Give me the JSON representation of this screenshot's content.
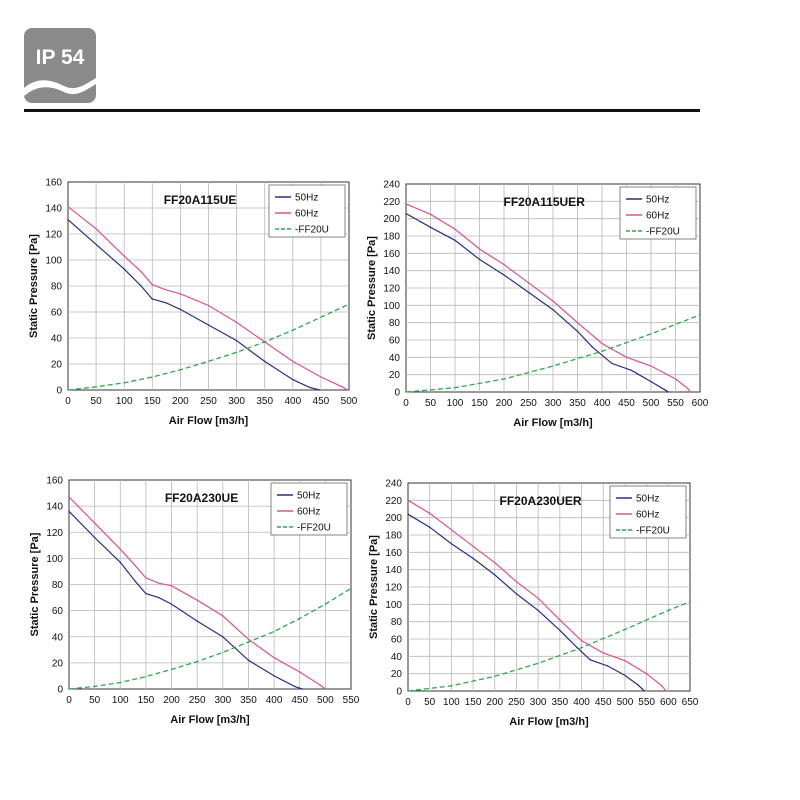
{
  "badge": {
    "label": "IP 54"
  },
  "colors": {
    "hz50": "#2b2c8c",
    "hz60": "#e0508a",
    "ff20u": "#2eaa4a",
    "grid": "#b8b8b8",
    "badge": "#8a8a8a"
  },
  "chart_data": [
    {
      "type": "line",
      "title": "FF20A115UE",
      "xlabel": "Air Flow [m3/h]",
      "ylabel": "Static Pressure [Pa]",
      "xlim": [
        0,
        500
      ],
      "ylim": [
        0,
        160
      ],
      "xticks": [
        0,
        50,
        100,
        150,
        200,
        250,
        300,
        350,
        400,
        450,
        500
      ],
      "yticks": [
        0,
        20,
        40,
        60,
        80,
        100,
        120,
        140,
        160
      ],
      "grid": true,
      "legend": "top-right",
      "series": [
        {
          "name": "50Hz",
          "x": [
            0,
            50,
            100,
            130,
            150,
            175,
            200,
            250,
            300,
            350,
            400,
            430,
            448
          ],
          "y": [
            131,
            112,
            93,
            80,
            70,
            67,
            62,
            50,
            38,
            22,
            8,
            2,
            0
          ]
        },
        {
          "name": "60Hz",
          "x": [
            0,
            50,
            100,
            130,
            150,
            175,
            200,
            250,
            300,
            350,
            400,
            450,
            490,
            497
          ],
          "y": [
            141,
            124,
            103,
            91,
            81,
            77,
            74,
            65,
            52,
            37,
            22,
            10,
            2,
            0
          ]
        },
        {
          "name": "-FF20U",
          "x": [
            0,
            50,
            100,
            150,
            200,
            250,
            300,
            350,
            400,
            450,
            500
          ],
          "y": [
            0,
            2.5,
            5.5,
            10,
            15.5,
            22,
            29,
            37,
            46,
            56,
            66
          ]
        }
      ]
    },
    {
      "type": "line",
      "title": "FF20A115UER",
      "xlabel": "Air Flow [m3/h]",
      "ylabel": "Static Pressure [Pa]",
      "xlim": [
        0,
        600
      ],
      "ylim": [
        0,
        240
      ],
      "xticks": [
        0,
        50,
        100,
        150,
        200,
        250,
        300,
        350,
        400,
        450,
        500,
        550,
        600
      ],
      "yticks": [
        0,
        20,
        40,
        60,
        80,
        100,
        120,
        140,
        160,
        180,
        200,
        220,
        240
      ],
      "grid": true,
      "legend": "top-right",
      "series": [
        {
          "name": "50Hz",
          "x": [
            0,
            50,
            100,
            150,
            200,
            250,
            300,
            350,
            380,
            420,
            460,
            500,
            530,
            535
          ],
          "y": [
            206,
            190,
            175,
            153,
            135,
            115,
            95,
            70,
            52,
            33,
            25,
            12,
            2,
            0
          ]
        },
        {
          "name": "60Hz",
          "x": [
            0,
            50,
            100,
            150,
            200,
            250,
            300,
            350,
            400,
            450,
            500,
            550,
            575,
            580
          ],
          "y": [
            217,
            205,
            188,
            165,
            147,
            126,
            105,
            80,
            56,
            40,
            30,
            15,
            4,
            0
          ]
        },
        {
          "name": "-FF20U",
          "x": [
            0,
            100,
            200,
            300,
            400,
            500,
            600
          ],
          "y": [
            0,
            5,
            15,
            30,
            47,
            67,
            89
          ]
        }
      ]
    },
    {
      "type": "line",
      "title": "FF20A230UE",
      "xlabel": "Air Flow [m3/h]",
      "ylabel": "Static Pressure [Pa]",
      "xlim": [
        0,
        550
      ],
      "ylim": [
        0,
        160
      ],
      "xticks": [
        0,
        50,
        100,
        150,
        200,
        250,
        300,
        350,
        400,
        450,
        500,
        550
      ],
      "yticks": [
        0,
        20,
        40,
        60,
        80,
        100,
        120,
        140,
        160
      ],
      "grid": true,
      "legend": "top-right",
      "series": [
        {
          "name": "50Hz",
          "x": [
            0,
            50,
            100,
            130,
            150,
            175,
            200,
            250,
            300,
            350,
            400,
            440,
            455
          ],
          "y": [
            136,
            116,
            97,
            82,
            73,
            70,
            65,
            52,
            40,
            22,
            10,
            2,
            0
          ]
        },
        {
          "name": "60Hz",
          "x": [
            0,
            50,
            100,
            130,
            150,
            175,
            200,
            250,
            300,
            350,
            400,
            450,
            490,
            500
          ],
          "y": [
            147,
            127,
            107,
            94,
            85,
            81,
            79,
            68,
            56,
            38,
            24,
            13,
            3,
            0
          ]
        },
        {
          "name": "-FF20U",
          "x": [
            0,
            50,
            100,
            150,
            200,
            250,
            300,
            350,
            400,
            450,
            500,
            550
          ],
          "y": [
            0,
            2,
            5,
            9.5,
            15,
            21,
            28,
            36,
            44,
            54,
            65,
            77
          ]
        }
      ]
    },
    {
      "type": "line",
      "title": "FF20A230UER",
      "xlabel": "Air Flow [m3/h]",
      "ylabel": "Static Pressure [Pa]",
      "xlim": [
        0,
        650
      ],
      "ylim": [
        0,
        240
      ],
      "xticks": [
        0,
        50,
        100,
        150,
        200,
        250,
        300,
        350,
        400,
        450,
        500,
        550,
        600,
        650
      ],
      "yticks": [
        0,
        20,
        40,
        60,
        80,
        100,
        120,
        140,
        160,
        180,
        200,
        220,
        240
      ],
      "grid": true,
      "legend": "top-right",
      "series": [
        {
          "name": "50Hz",
          "x": [
            0,
            50,
            100,
            150,
            200,
            250,
            300,
            350,
            390,
            420,
            460,
            500,
            530,
            545
          ],
          "y": [
            204,
            189,
            170,
            153,
            134,
            112,
            93,
            70,
            50,
            36,
            29,
            18,
            7,
            0
          ]
        },
        {
          "name": "60Hz",
          "x": [
            0,
            50,
            100,
            150,
            200,
            250,
            300,
            350,
            400,
            450,
            500,
            550,
            585,
            595
          ],
          "y": [
            220,
            205,
            186,
            167,
            148,
            126,
            107,
            82,
            58,
            44,
            35,
            20,
            6,
            0
          ]
        },
        {
          "name": "-FF20U",
          "x": [
            0,
            100,
            200,
            300,
            400,
            500,
            600,
            650
          ],
          "y": [
            0,
            6,
            17,
            32,
            50,
            71,
            93,
            103
          ]
        }
      ]
    }
  ]
}
